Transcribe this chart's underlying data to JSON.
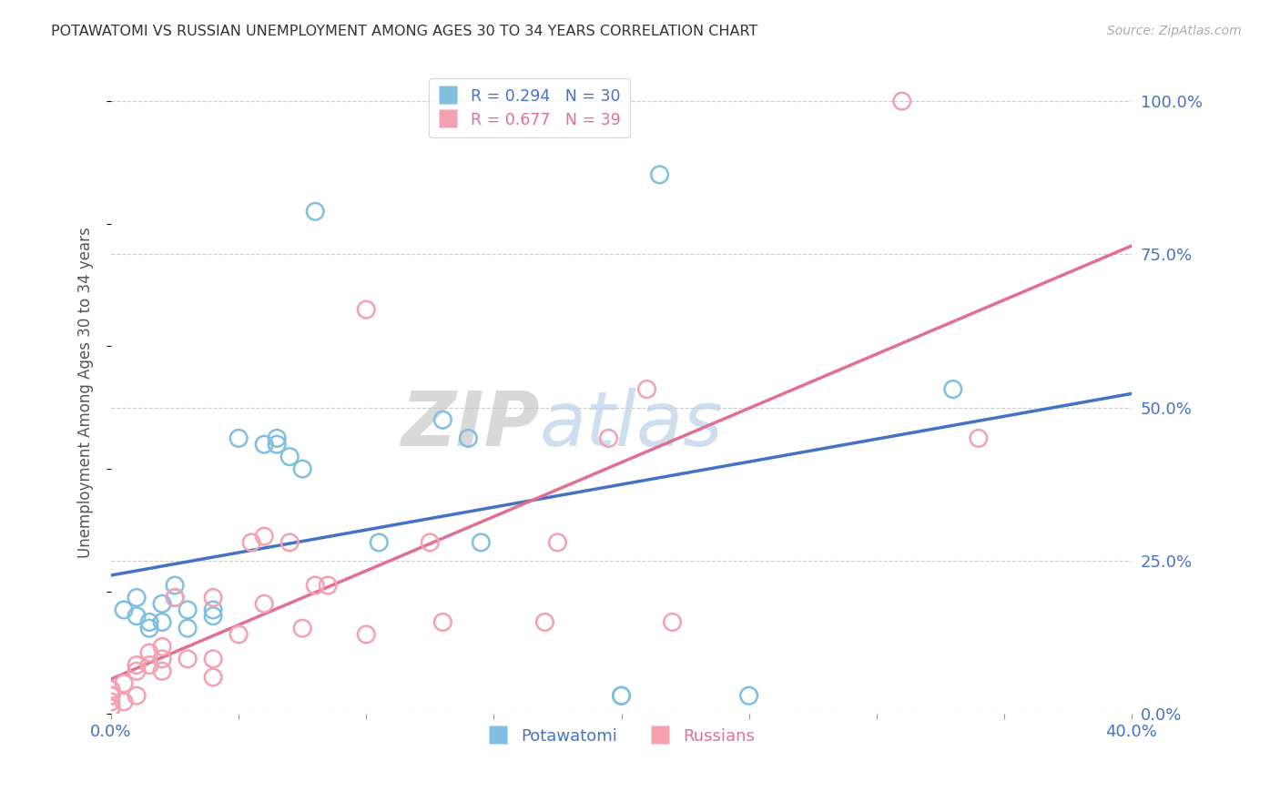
{
  "title": "POTAWATOMI VS RUSSIAN UNEMPLOYMENT AMONG AGES 30 TO 34 YEARS CORRELATION CHART",
  "source": "Source: ZipAtlas.com",
  "ylabel": "Unemployment Among Ages 30 to 34 years",
  "xlim": [
    0.0,
    0.4
  ],
  "ylim": [
    0.0,
    1.05
  ],
  "xticks": [
    0.0,
    0.05,
    0.1,
    0.15,
    0.2,
    0.25,
    0.3,
    0.35,
    0.4
  ],
  "yticks_right": [
    0.0,
    0.25,
    0.5,
    0.75,
    1.0
  ],
  "yticklabels_right": [
    "0.0%",
    "25.0%",
    "50.0%",
    "75.0%",
    "100.0%"
  ],
  "legend_label1": "R = 0.294   N = 30",
  "legend_label2": "R = 0.677   N = 39",
  "legend_label_potawatomi": "Potawatomi",
  "legend_label_russians": "Russians",
  "color_potawatomi": "#7fbfdf",
  "color_russians": "#f4a0b0",
  "color_line_potawatomi": "#4472c4",
  "color_line_russians": "#e07090",
  "watermark_zip": "ZIP",
  "watermark_atlas": "atlas",
  "potawatomi_x": [
    0.0,
    0.005,
    0.01,
    0.01,
    0.015,
    0.015,
    0.02,
    0.02,
    0.025,
    0.025,
    0.03,
    0.03,
    0.04,
    0.04,
    0.05,
    0.06,
    0.065,
    0.065,
    0.07,
    0.075,
    0.08,
    0.105,
    0.13,
    0.14,
    0.145,
    0.2,
    0.2,
    0.215,
    0.25,
    0.33
  ],
  "potawatomi_y": [
    0.03,
    0.17,
    0.16,
    0.19,
    0.15,
    0.14,
    0.18,
    0.15,
    0.19,
    0.21,
    0.17,
    0.14,
    0.17,
    0.16,
    0.45,
    0.44,
    0.45,
    0.44,
    0.42,
    0.4,
    0.82,
    0.28,
    0.48,
    0.45,
    0.28,
    0.03,
    0.03,
    0.88,
    0.03,
    0.53
  ],
  "russians_x": [
    0.0,
    0.0,
    0.0,
    0.0,
    0.0,
    0.005,
    0.005,
    0.01,
    0.01,
    0.01,
    0.015,
    0.015,
    0.02,
    0.02,
    0.02,
    0.025,
    0.03,
    0.04,
    0.04,
    0.04,
    0.05,
    0.055,
    0.06,
    0.06,
    0.07,
    0.075,
    0.08,
    0.085,
    0.1,
    0.1,
    0.125,
    0.13,
    0.17,
    0.175,
    0.195,
    0.21,
    0.22,
    0.31,
    0.34
  ],
  "russians_y": [
    0.01,
    0.01,
    0.02,
    0.03,
    0.04,
    0.02,
    0.05,
    0.03,
    0.07,
    0.08,
    0.08,
    0.1,
    0.07,
    0.09,
    0.11,
    0.19,
    0.09,
    0.06,
    0.09,
    0.19,
    0.13,
    0.28,
    0.18,
    0.29,
    0.28,
    0.14,
    0.21,
    0.21,
    0.13,
    0.66,
    0.28,
    0.15,
    0.15,
    0.28,
    0.45,
    0.53,
    0.15,
    1.0,
    0.45
  ]
}
